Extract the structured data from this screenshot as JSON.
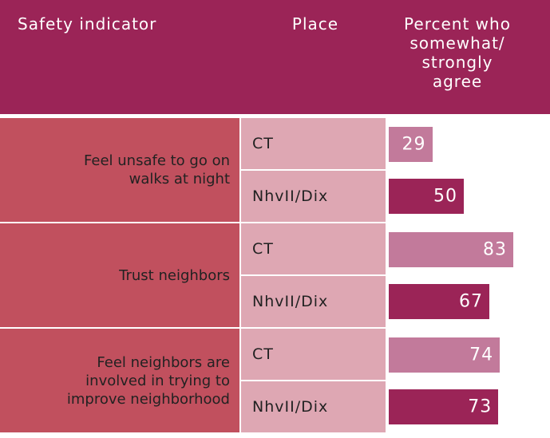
{
  "chart_data": {
    "type": "bar",
    "headers": [
      "Safety indicator",
      "Place",
      "Percent who somewhat/ strongly agree"
    ],
    "categories": [
      "Feel unsafe to go on walks at night",
      "Trust neighbors",
      "Feel neighbors are involved in trying to improve neighborhood"
    ],
    "series": [
      {
        "name": "CT",
        "color": "#c27a9b",
        "values": [
          29,
          83,
          74
        ]
      },
      {
        "name": "NhvII/Dix",
        "color": "#9b2457",
        "values": [
          50,
          67,
          73
        ]
      }
    ]
  }
}
